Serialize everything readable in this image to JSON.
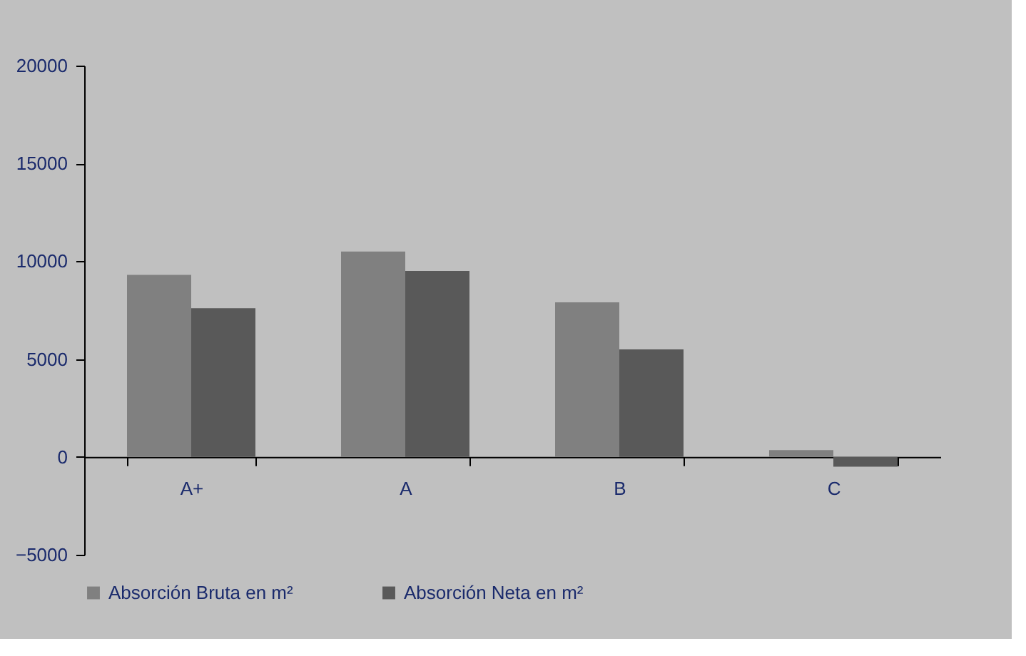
{
  "chart_data": {
    "type": "bar",
    "categories": [
      "A+",
      "A",
      "B",
      "C"
    ],
    "series": [
      {
        "name": "Absorción Bruta en m²",
        "color": "#808080",
        "values": [
          9300,
          10500,
          7900,
          350
        ]
      },
      {
        "name": "Absorción Neta en m²",
        "color": "#595959",
        "values": [
          7600,
          9500,
          5500,
          -500
        ]
      }
    ],
    "ylim": [
      -5000,
      20000
    ],
    "yticks": [
      -5000,
      0,
      5000,
      10000,
      15000,
      20000
    ],
    "grid": false,
    "legend": "bottom"
  }
}
